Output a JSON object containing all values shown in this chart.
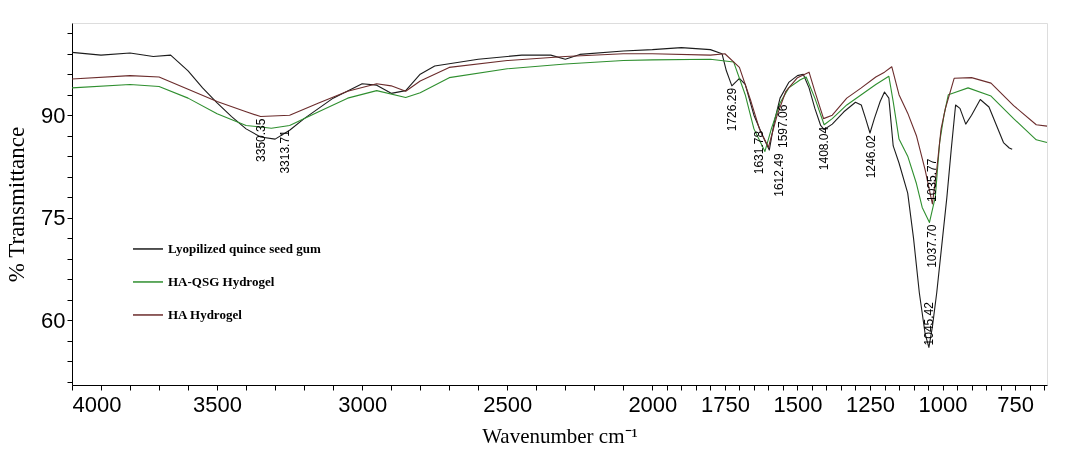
{
  "chart_data": {
    "type": "line",
    "xlabel": "Wavenumber cm⁻¹",
    "ylabel": "% Transmittance",
    "xlim": [
      4000,
      640
    ],
    "xticks": [
      4000,
      {
        "value": 3900,
        "label": null
      },
      {
        "value": 3800,
        "label": null
      },
      {
        "value": 3700,
        "label": null
      },
      {
        "value": 3600,
        "label": null
      },
      3500,
      {
        "value": 3400,
        "label": null
      },
      {
        "value": 3300,
        "label": null
      },
      {
        "value": 3200,
        "label": null
      },
      {
        "value": 3100,
        "label": null
      },
      3000,
      {
        "value": 2900,
        "label": null
      },
      {
        "value": 2800,
        "label": null
      },
      {
        "value": 2700,
        "label": null
      },
      {
        "value": 2600,
        "label": null
      },
      2500,
      {
        "value": 2400,
        "label": null
      },
      {
        "value": 2300,
        "label": null
      },
      {
        "value": 2200,
        "label": null
      },
      {
        "value": 2100,
        "label": null
      },
      2000,
      {
        "value": 1950,
        "label": null
      },
      {
        "value": 1900,
        "label": null
      },
      {
        "value": 1850,
        "label": null
      },
      {
        "value": 1800,
        "label": null
      },
      1750,
      {
        "value": 1700,
        "label": null
      },
      {
        "value": 1650,
        "label": null
      },
      {
        "value": 1600,
        "label": null
      },
      {
        "value": 1550,
        "label": null
      },
      1500,
      {
        "value": 1450,
        "label": null
      },
      {
        "value": 1400,
        "label": null
      },
      {
        "value": 1350,
        "label": null
      },
      {
        "value": 1300,
        "label": null
      },
      1250,
      {
        "value": 1200,
        "label": null
      },
      {
        "value": 1150,
        "label": null
      },
      {
        "value": 1100,
        "label": null
      },
      {
        "value": 1050,
        "label": null
      },
      1000,
      {
        "value": 950,
        "label": null
      },
      {
        "value": 900,
        "label": null
      },
      {
        "value": 850,
        "label": null
      },
      {
        "value": 800,
        "label": null
      },
      750,
      {
        "value": 700,
        "label": null
      },
      {
        "value": 650,
        "label": null
      }
    ],
    "ylim": [
      50.5,
      103.5
    ],
    "yticks": [
      {
        "value": 51,
        "label": null
      },
      {
        "value": 54,
        "label": null
      },
      {
        "value": 57,
        "label": null
      },
      60,
      {
        "value": 63,
        "label": null
      },
      {
        "value": 66,
        "label": null
      },
      {
        "value": 69,
        "label": null
      },
      {
        "value": 72,
        "label": null
      },
      75,
      {
        "value": 78,
        "label": null
      },
      {
        "value": 81,
        "label": null
      },
      {
        "value": 84,
        "label": null
      },
      {
        "value": 87,
        "label": null
      },
      90,
      {
        "value": 93,
        "label": null
      },
      {
        "value": 96,
        "label": null
      },
      {
        "value": 99,
        "label": null
      },
      {
        "value": 102,
        "label": null
      }
    ],
    "grid": false,
    "legend": "left",
    "marker": "none",
    "line_style": "solid",
    "series": [
      {
        "name": "Lyopilized quince seed gum",
        "color": "#1c1c1c",
        "x": [
          4000,
          3900,
          3800,
          3720,
          3660,
          3600,
          3550,
          3500,
          3450,
          3400,
          3350,
          3300,
          3250,
          3200,
          3100,
          3000,
          2950,
          2900,
          2850,
          2800,
          2750,
          2600,
          2450,
          2350,
          2300,
          2250,
          2100,
          2000,
          1900,
          1800,
          1760,
          1745,
          1726,
          1700,
          1680,
          1650,
          1620,
          1597,
          1580,
          1560,
          1530,
          1500,
          1480,
          1460,
          1440,
          1420,
          1408,
          1380,
          1340,
          1300,
          1280,
          1265,
          1250,
          1235,
          1215,
          1200,
          1185,
          1170,
          1150,
          1120,
          1100,
          1080,
          1060,
          1047,
          1035,
          1020,
          1000,
          985,
          970,
          955,
          940,
          920,
          900,
          870,
          840,
          815,
          790,
          770,
          760
        ],
        "values": [
          99.2,
          98.8,
          99.1,
          98.6,
          98.8,
          96.5,
          94,
          91.8,
          89.8,
          88,
          86.8,
          86.5,
          87.8,
          89.5,
          92.5,
          94.6,
          94.4,
          93.2,
          93.6,
          96,
          97.2,
          98.2,
          98.8,
          98.8,
          98.2,
          98.9,
          99.4,
          99.6,
          99.9,
          99.6,
          99,
          96.5,
          94.3,
          95.4,
          94.5,
          90,
          87,
          84.9,
          89,
          92.5,
          94.8,
          95.8,
          96,
          94,
          91,
          88.5,
          87.9,
          88.7,
          90.5,
          91.9,
          91.5,
          89.5,
          87.4,
          89.5,
          92,
          93.4,
          92.5,
          85.5,
          83,
          78.6,
          72,
          64,
          58,
          56,
          59,
          64,
          72,
          78,
          85,
          91.5,
          91,
          88.7,
          90,
          92.3,
          91.2,
          88.6,
          86,
          85.2,
          85
        ]
      },
      {
        "name": "HA-QSG Hydrogel",
        "color": "#2f8f2f",
        "x": [
          4000,
          3800,
          3700,
          3600,
          3500,
          3400,
          3313,
          3250,
          3150,
          3050,
          2950,
          2850,
          2800,
          2700,
          2500,
          2300,
          2100,
          2000,
          1800,
          1720,
          1680,
          1650,
          1612,
          1590,
          1560,
          1530,
          1490,
          1470,
          1440,
          1408,
          1380,
          1330,
          1280,
          1230,
          1200,
          1185,
          1170,
          1150,
          1120,
          1090,
          1070,
          1045,
          1025,
          1010,
          995,
          980,
          960,
          912,
          833,
          755,
          677,
          640
        ],
        "values": [
          94,
          94.5,
          94.2,
          92.5,
          90.2,
          88.5,
          88.1,
          88.5,
          90.5,
          92.5,
          93.6,
          92.6,
          93.3,
          95.5,
          96.8,
          97.5,
          98,
          98.1,
          98.2,
          97.8,
          93,
          88,
          84.7,
          88,
          91.8,
          94,
          95.2,
          95.6,
          92.5,
          88.6,
          89.5,
          91.5,
          93,
          94.5,
          95.3,
          95.7,
          92,
          86.5,
          84,
          80,
          76.5,
          74.3,
          78,
          86,
          90,
          93,
          93.3,
          94,
          92.8,
          89.5,
          86.4,
          86
        ]
      },
      {
        "name": "HA Hydrogel",
        "color": "#6b2c2c",
        "x": [
          4000,
          3800,
          3700,
          3600,
          3500,
          3400,
          3350,
          3250,
          3150,
          3050,
          2950,
          2900,
          2850,
          2800,
          2700,
          2500,
          2300,
          2100,
          2000,
          1800,
          1750,
          1700,
          1660,
          1631,
          1600,
          1570,
          1540,
          1500,
          1460,
          1440,
          1410,
          1380,
          1330,
          1280,
          1230,
          1200,
          1175,
          1150,
          1120,
          1090,
          1060,
          1035,
          1020,
          1005,
          990,
          960,
          900,
          833,
          755,
          677,
          640
        ],
        "values": [
          95.3,
          95.8,
          95.6,
          93.8,
          92,
          90.5,
          89.8,
          90,
          91.8,
          93.5,
          94.6,
          94.3,
          93.5,
          95,
          97,
          98,
          98.6,
          99,
          99,
          98.8,
          99,
          97,
          92,
          88,
          85.3,
          90,
          93.5,
          95.5,
          96.3,
          93.5,
          89.5,
          90,
          92.5,
          94,
          95.6,
          96.3,
          97.1,
          93,
          90.3,
          87,
          82,
          77,
          82,
          88,
          91,
          95.4,
          95.5,
          94.7,
          91.4,
          88.6,
          88.4
        ]
      }
    ],
    "annotations": [
      {
        "text": "3350.35",
        "x": 3350.35,
        "y": 89.8
      },
      {
        "text": "3313.71",
        "x": 3313.71,
        "y": 88.1
      },
      {
        "text": "1726.29",
        "x": 1726.29,
        "y": 94.3
      },
      {
        "text": "1631.78",
        "x": 1631.78,
        "y": 88
      },
      {
        "text": "1612.49",
        "x": 1612.49,
        "y": 84.7
      },
      {
        "text": "1597.06",
        "x": 1597.06,
        "y": 84.9
      },
      {
        "text": "1408.04",
        "x": 1408.04,
        "y": 88.6
      },
      {
        "text": "1246.02",
        "x": 1246.02,
        "y": 87.4
      },
      {
        "text": "1045.42",
        "x": 1045.42,
        "y": 56
      },
      {
        "text": "1037.70",
        "x": 1037.7,
        "y": 74.3
      },
      {
        "text": "1035.77",
        "x": 1035.77,
        "y": 77
      }
    ]
  }
}
